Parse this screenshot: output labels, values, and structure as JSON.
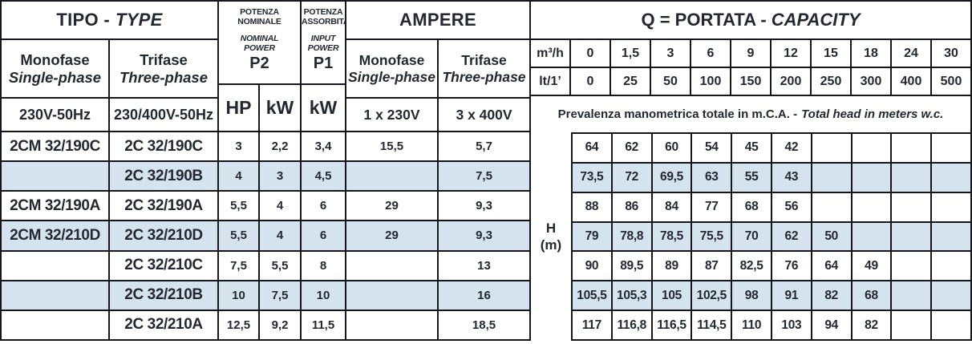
{
  "title_row": {
    "tipo_it": "TIPO -",
    "tipo_en": "TYPE",
    "ampere": "AMPERE",
    "portata_it": "Q = PORTATA -",
    "portata_en": "CAPACITY"
  },
  "type_section": {
    "monofase_it": "Monofase",
    "monofase_en": "Single-phase",
    "trifase_it": "Trifase",
    "trifase_en": "Three-phase",
    "monofase_voltage": "230V-50Hz",
    "trifase_voltage": "230/400V-50Hz"
  },
  "power_section": {
    "nominal_it": "POTENZA NOMINALE",
    "nominal_en": "NOMINAL POWER",
    "nominal_symbol": "P2",
    "nominal_unit_hp": "HP",
    "nominal_unit_kw": "kW",
    "input_it": "POTENZA ASSORBITA",
    "input_en": "INPUT POWER",
    "input_symbol": "P1",
    "input_unit": "kW"
  },
  "ampere_section": {
    "monofase_it": "Monofase",
    "monofase_en": "Single-phase",
    "trifase_it": "Trifase",
    "trifase_en": "Three-phase",
    "monofase_voltage": "1 x 230V",
    "trifase_voltage": "3 x 400V"
  },
  "capacity_section": {
    "m3h_label": "m³/h",
    "m3h_values": [
      "0",
      "1,5",
      "3",
      "6",
      "9",
      "12",
      "15",
      "18",
      "24",
      "30"
    ],
    "lt_label": "lt/1’",
    "lt_values": [
      "0",
      "25",
      "50",
      "100",
      "150",
      "200",
      "250",
      "300",
      "400",
      "500"
    ],
    "note_it": "Prevalenza manometrica totale in m.C.A. -",
    "note_en": "Total head in meters w.c.",
    "head_unit_line1": "H",
    "head_unit_line2": "(m)"
  },
  "rows": [
    {
      "monofase": "2CM 32/190C",
      "trifase": "2C 32/190C",
      "hp": "3",
      "kw_p2": "2,2",
      "kw_p1": "3,4",
      "amp_mono": "15,5",
      "amp_tri": "5,7",
      "head": [
        "64",
        "62",
        "60",
        "54",
        "45",
        "42",
        "",
        "",
        "",
        ""
      ]
    },
    {
      "monofase": "",
      "trifase": "2C 32/190B",
      "hp": "4",
      "kw_p2": "3",
      "kw_p1": "4,5",
      "amp_mono": "",
      "amp_tri": "7,5",
      "head": [
        "73,5",
        "72",
        "69,5",
        "63",
        "55",
        "43",
        "",
        "",
        "",
        ""
      ]
    },
    {
      "monofase": "2CM 32/190A",
      "trifase": "2C 32/190A",
      "hp": "5,5",
      "kw_p2": "4",
      "kw_p1": "6",
      "amp_mono": "29",
      "amp_tri": "9,3",
      "head": [
        "88",
        "86",
        "84",
        "77",
        "68",
        "56",
        "",
        "",
        "",
        ""
      ]
    },
    {
      "monofase": "2CM 32/210D",
      "trifase": "2C 32/210D",
      "hp": "5,5",
      "kw_p2": "4",
      "kw_p1": "6",
      "amp_mono": "29",
      "amp_tri": "9,3",
      "head": [
        "79",
        "78,8",
        "78,5",
        "75,5",
        "70",
        "62",
        "50",
        "",
        "",
        ""
      ]
    },
    {
      "monofase": "",
      "trifase": "2C 32/210C",
      "hp": "7,5",
      "kw_p2": "5,5",
      "kw_p1": "8",
      "amp_mono": "",
      "amp_tri": "13",
      "head": [
        "90",
        "89,5",
        "89",
        "87",
        "82,5",
        "76",
        "64",
        "49",
        "",
        ""
      ]
    },
    {
      "monofase": "",
      "trifase": "2C 32/210B",
      "hp": "10",
      "kw_p2": "7,5",
      "kw_p1": "10",
      "amp_mono": "",
      "amp_tri": "16",
      "head": [
        "105,5",
        "105,3",
        "105",
        "102,5",
        "98",
        "91",
        "82",
        "68",
        "",
        ""
      ]
    },
    {
      "monofase": "",
      "trifase": "2C 32/210A",
      "hp": "12,5",
      "kw_p2": "9,2",
      "kw_p1": "11,5",
      "amp_mono": "",
      "amp_tri": "18,5",
      "head": [
        "117",
        "116,8",
        "116,5",
        "114,5",
        "110",
        "103",
        "94",
        "82",
        "",
        ""
      ]
    }
  ],
  "colors": {
    "stripe": "#d5e3ee",
    "border": "#15151c",
    "text": "#232831"
  }
}
